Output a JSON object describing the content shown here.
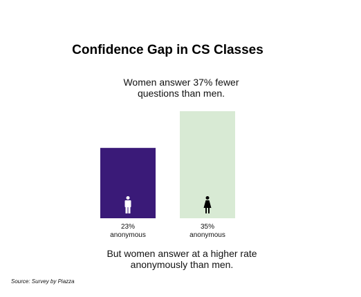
{
  "title": "Confidence Gap in CS Classes",
  "subtitle": "Women answer 37% fewer questions than men.",
  "note": "But women answer at a higher rate anonymously than men.",
  "source": "Source: Survey by Piazza",
  "colors": {
    "men": "#3a1a78",
    "women": "#d8ead4",
    "icon_men": "#ffffff",
    "icon_women": "#000000"
  },
  "chart_data": {
    "type": "bar",
    "categories": [
      "men",
      "women"
    ],
    "values": [
      23,
      35
    ],
    "value_labels": [
      "23%",
      "35%"
    ],
    "sublabel": "anonymous",
    "icons": [
      "male-figure-icon",
      "female-figure-icon"
    ],
    "ylim": [
      0,
      35
    ],
    "title": "",
    "xlabel": "",
    "ylabel": ""
  }
}
